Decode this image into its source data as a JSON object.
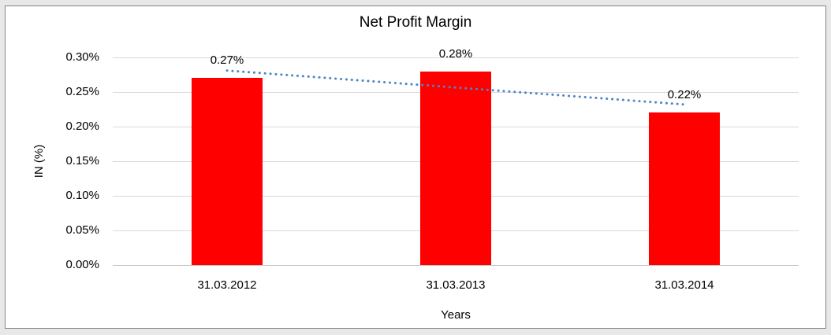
{
  "window": {
    "background": "#e8e8e8",
    "canvas": "#ffffff",
    "frame_border": "#858585",
    "gridline_color": "#d9d9d9",
    "axis_line_color": "#c4c4c4",
    "text_color": "#000000"
  },
  "chart_data": {
    "type": "bar",
    "title": "Net Profit Margin",
    "xlabel": "Years",
    "ylabel": "IN (%)",
    "categories": [
      "31.03.2012",
      "31.03.2013",
      "31.03.2014"
    ],
    "values": [
      0.27,
      0.28,
      0.22
    ],
    "data_labels": [
      "0.27%",
      "0.28%",
      "0.22%"
    ],
    "ylim": [
      0,
      0.3
    ],
    "ytick_step": 0.05,
    "ytick_labels": [
      "0.00%",
      "0.05%",
      "0.10%",
      "0.15%",
      "0.20%",
      "0.25%",
      "0.30%"
    ],
    "grid": true,
    "legend": "none",
    "bar_color": "#ff0000",
    "trendline": {
      "type": "linear",
      "style": "dotted",
      "color": "#4d86c4",
      "start_value": 0.281,
      "end_value": 0.232
    }
  }
}
